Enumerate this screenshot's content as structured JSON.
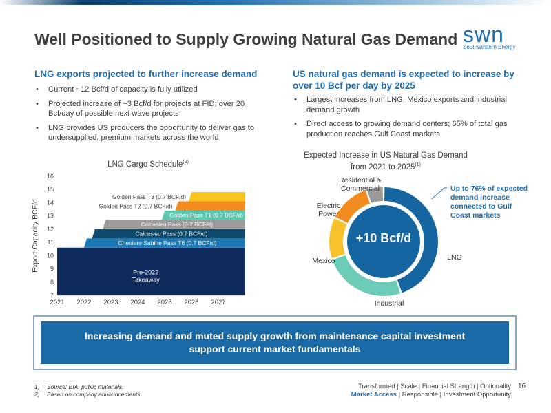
{
  "title": "Well Positioned to Supply Growing Natural Gas Demand",
  "logo": {
    "main": "swn",
    "sub": "Southwestern Energy"
  },
  "left": {
    "heading": "LNG exports projected to further increase demand",
    "bullets": [
      "Current ~12 Bcf/d of capacity is fully utilized",
      "Projected increase of ~3 Bcf/d for projects at FID; over 20 Bcf/day of possible next wave projects",
      "LNG provides US producers the opportunity to deliver gas to undersupplied, premium markets across the world"
    ]
  },
  "right": {
    "heading": "US natural gas demand is expected to increase by over 10 Bcf per day by 2025",
    "bullets": [
      "Largest increases from LNG, Mexico exports and industrial demand growth",
      "Direct access to growing demand centers; 65% of total gas production reaches Gulf Coast markets"
    ]
  },
  "chart_data": [
    {
      "type": "area",
      "title": "LNG Cargo Schedule",
      "title_sup": "(2)",
      "ylabel": "Export Capacity BCF/d",
      "xlabel": "",
      "xlim": [
        2021,
        2028
      ],
      "ylim": [
        7,
        16
      ],
      "x_ticks": [
        "2021",
        "2022",
        "2023",
        "2024",
        "2025",
        "2026",
        "2027"
      ],
      "y_ticks": [
        "7",
        "8",
        "9",
        "10",
        "11",
        "12",
        "13",
        "14",
        "15",
        "16"
      ],
      "layers": [
        {
          "label": "Pre-2022 Takeaway",
          "label_lines": [
            "Pre-2022",
            "Takeaway"
          ],
          "start": 2021.0,
          "bottom": 7,
          "top": 10.6,
          "color": "#0f2a5c",
          "text_color": "#ffffff"
        },
        {
          "label": "Cheniere Sabine Pass T6 (0.7 BCF/d)",
          "start": 2022.0,
          "bottom": 10.6,
          "top": 11.3,
          "color": "#1b79b6",
          "text_color": "#ffffff"
        },
        {
          "label": "Calcasieu Pass (0.7 BCF/d)",
          "start": 2022.3,
          "bottom": 11.3,
          "top": 12.0,
          "color": "#0d4a6e",
          "text_color": "#ffffff"
        },
        {
          "label": "Calcasieu Pass  (0.7 BCF/d)",
          "start": 2022.7,
          "bottom": 12.0,
          "top": 12.7,
          "color": "#9b9b9b",
          "text_color": "#ffffff"
        },
        {
          "label": "Golden Pass T1 (0.7 BCF/d)",
          "start": 2024.9,
          "bottom": 12.7,
          "top": 13.4,
          "color": "#5cc6b0",
          "text_color": "#ffffff"
        },
        {
          "label": "Golden Pass T2 (0.7 BCF/d)",
          "start": 2025.4,
          "bottom": 13.4,
          "top": 14.1,
          "color": "#f28c1e",
          "text_color": "#404040"
        },
        {
          "label": "Golden Pass T3 (0.7 BCF/d)",
          "start": 2025.9,
          "bottom": 14.1,
          "top": 14.8,
          "color": "#f7c31c",
          "text_color": "#404040"
        }
      ]
    },
    {
      "type": "pie",
      "title": "Expected Increase in US Natural Gas Demand from 2021 to 2025",
      "title_lines": [
        "Expected Increase in US Natural Gas Demand",
        "from 2021 to 2025"
      ],
      "title_sup": "(1)",
      "center_label": "+10 Bcf/d",
      "slices": [
        {
          "name": "LNG",
          "value": 43,
          "color": "#1565a0"
        },
        {
          "name": "Industrial",
          "value": 24,
          "color": "#6cccb8"
        },
        {
          "name": "Mexico",
          "value": 12,
          "color": "#f6c12b"
        },
        {
          "name": "Electric Power",
          "value": 12,
          "color": "#f28c1e"
        },
        {
          "name": "Residential & Commercial",
          "value": 5,
          "color": "#9a9a9a"
        }
      ],
      "callout": "Up to 76% of expected demand increase connected to Gulf Coast markets",
      "callout_color": "#1f6fb2"
    }
  ],
  "donut_labels": {
    "resid": [
      "Residential &",
      "Commercial"
    ],
    "electric": [
      "Electric",
      "Power"
    ],
    "mexico": "Mexico",
    "lng": "LNG",
    "industrial": "Industrial"
  },
  "banner": "Increasing demand and muted supply growth from maintenance capital investment support current market fundamentals",
  "footnotes": [
    {
      "n": "1)",
      "text": "Source: EIA, public materials."
    },
    {
      "n": "2)",
      "text": "Based on company announcements."
    }
  ],
  "tagline": {
    "line1": "Transformed | Scale | Financial Strength | Optionality",
    "line2_highlight": "Market Access",
    "line2_rest": " | Responsible | Investment Opportunity"
  },
  "page_number": "16",
  "colors": {
    "accent": "#1f6fb2",
    "banner": "#1b6aa8"
  }
}
